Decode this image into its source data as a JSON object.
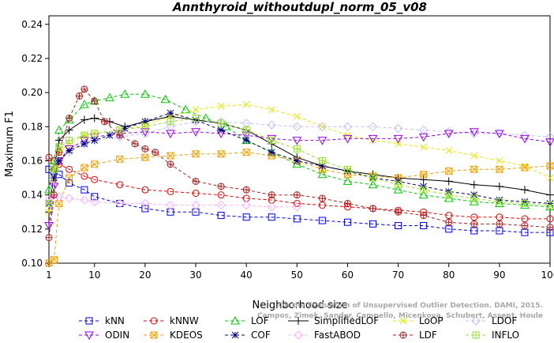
{
  "chart_data": {
    "type": "line",
    "title": "Annthyroid_withoutdupl_norm_05_v08",
    "xlabel": "Neighborhood size",
    "ylabel": "Maximum F1",
    "xlim": [
      1,
      100
    ],
    "ylim": [
      0.1,
      0.245
    ],
    "xticks": [
      1,
      10,
      20,
      30,
      40,
      50,
      60,
      70,
      80,
      90,
      100
    ],
    "yticks": [
      0.1,
      0.12,
      0.14,
      0.16,
      0.18,
      0.2,
      0.22,
      0.24
    ],
    "ytick_labels": [
      "0.10",
      "0.12",
      "0.14",
      "0.16",
      "0.18",
      "0.20",
      "0.22",
      "0.24"
    ],
    "grid": false,
    "legend_position": "bottom",
    "watermark": [
      "Campos, Zimek, Sander, Campello, Micenkova, Schubert, Assent, Houle",
      "On the Evaluation of Unsupervised Outlier Detection. DAMI, 2015."
    ],
    "series": [
      {
        "name": "kNN",
        "color": "#0000ee",
        "marker": "square",
        "dash": "dash",
        "x": [
          1,
          2,
          3,
          5,
          8,
          10,
          15,
          20,
          25,
          30,
          35,
          40,
          45,
          50,
          55,
          60,
          65,
          70,
          75,
          80,
          85,
          90,
          95,
          100
        ],
        "y": [
          0.155,
          0.154,
          0.152,
          0.147,
          0.143,
          0.139,
          0.135,
          0.132,
          0.13,
          0.13,
          0.128,
          0.127,
          0.127,
          0.126,
          0.125,
          0.124,
          0.123,
          0.122,
          0.122,
          0.12,
          0.119,
          0.119,
          0.118,
          0.118
        ]
      },
      {
        "name": "kNNW",
        "color": "#ee0000",
        "marker": "circle",
        "dash": "dash",
        "x": [
          1,
          2,
          3,
          5,
          8,
          10,
          15,
          20,
          25,
          30,
          35,
          40,
          45,
          50,
          55,
          60,
          65,
          70,
          75,
          80,
          85,
          90,
          95,
          100
        ],
        "y": [
          0.162,
          0.16,
          0.158,
          0.155,
          0.151,
          0.149,
          0.146,
          0.143,
          0.142,
          0.141,
          0.14,
          0.138,
          0.137,
          0.135,
          0.134,
          0.133,
          0.132,
          0.131,
          0.13,
          0.128,
          0.127,
          0.127,
          0.126,
          0.126
        ]
      },
      {
        "name": "LOF",
        "color": "#00cc00",
        "marker": "triangle",
        "dash": "dash",
        "x": [
          1,
          2,
          3,
          5,
          8,
          10,
          13,
          16,
          20,
          24,
          28,
          32,
          36,
          40,
          45,
          50,
          55,
          60,
          65,
          70,
          75,
          80,
          85,
          90,
          95,
          100
        ],
        "y": [
          0.143,
          0.16,
          0.178,
          0.184,
          0.193,
          0.195,
          0.197,
          0.199,
          0.199,
          0.196,
          0.19,
          0.185,
          0.18,
          0.172,
          0.165,
          0.158,
          0.152,
          0.148,
          0.146,
          0.143,
          0.14,
          0.138,
          0.136,
          0.135,
          0.134,
          0.133
        ]
      },
      {
        "name": "SimplifiedLOF",
        "color": "#000000",
        "marker": "plus",
        "dash": "solid",
        "x": [
          1,
          2,
          3,
          5,
          8,
          10,
          13,
          16,
          20,
          25,
          30,
          35,
          40,
          45,
          50,
          55,
          60,
          65,
          70,
          75,
          80,
          85,
          90,
          95,
          100
        ],
        "y": [
          0.13,
          0.155,
          0.172,
          0.178,
          0.184,
          0.185,
          0.183,
          0.18,
          0.183,
          0.186,
          0.184,
          0.182,
          0.178,
          0.17,
          0.162,
          0.157,
          0.154,
          0.152,
          0.15,
          0.149,
          0.148,
          0.146,
          0.145,
          0.143,
          0.14
        ]
      },
      {
        "name": "LoOP",
        "color": "#e8e800",
        "marker": "cross",
        "dash": "dash",
        "x": [
          1,
          2,
          3,
          5,
          8,
          10,
          15,
          20,
          25,
          30,
          35,
          40,
          45,
          50,
          55,
          60,
          65,
          70,
          75,
          80,
          85,
          90,
          95,
          100
        ],
        "y": [
          0.13,
          0.155,
          0.165,
          0.17,
          0.175,
          0.176,
          0.178,
          0.181,
          0.186,
          0.19,
          0.192,
          0.193,
          0.19,
          0.186,
          0.18,
          0.175,
          0.172,
          0.17,
          0.168,
          0.166,
          0.163,
          0.16,
          0.157,
          0.15
        ]
      },
      {
        "name": "LDOF",
        "color": "#c0c0ff",
        "marker": "diamond",
        "dash": "dash",
        "x": [
          1,
          2,
          3,
          5,
          8,
          10,
          15,
          20,
          25,
          30,
          35,
          40,
          45,
          50,
          55,
          60,
          65,
          70,
          75,
          80,
          85,
          90,
          95,
          100
        ],
        "y": [
          0.135,
          0.15,
          0.16,
          0.165,
          0.17,
          0.172,
          0.174,
          0.176,
          0.18,
          0.183,
          0.183,
          0.182,
          0.181,
          0.18,
          0.18,
          0.18,
          0.18,
          0.179,
          0.178,
          0.177,
          0.176,
          0.176,
          0.175,
          0.174
        ]
      },
      {
        "name": "ODIN",
        "color": "#9900ee",
        "marker": "triangle-down",
        "dash": "dash",
        "x": [
          1,
          2,
          3,
          5,
          8,
          10,
          15,
          20,
          25,
          30,
          35,
          40,
          45,
          50,
          55,
          60,
          65,
          70,
          75,
          80,
          85,
          90,
          95,
          100
        ],
        "y": [
          0.122,
          0.145,
          0.16,
          0.167,
          0.172,
          0.174,
          0.176,
          0.177,
          0.176,
          0.177,
          0.176,
          0.175,
          0.173,
          0.172,
          0.172,
          0.173,
          0.173,
          0.173,
          0.174,
          0.176,
          0.177,
          0.176,
          0.173,
          0.171
        ]
      },
      {
        "name": "KDEOS",
        "color": "#f0a000",
        "marker": "square-x",
        "dash": "dash",
        "x": [
          1,
          2,
          3,
          5,
          8,
          10,
          15,
          20,
          25,
          30,
          35,
          40,
          45,
          50,
          55,
          60,
          65,
          70,
          75,
          80,
          85,
          90,
          95,
          100
        ],
        "y": [
          0.1,
          0.102,
          0.135,
          0.15,
          0.156,
          0.158,
          0.161,
          0.162,
          0.163,
          0.164,
          0.164,
          0.165,
          0.163,
          0.16,
          0.155,
          0.152,
          0.151,
          0.15,
          0.152,
          0.154,
          0.155,
          0.155,
          0.156,
          0.157
        ]
      },
      {
        "name": "COF",
        "color": "#000080",
        "marker": "star",
        "dash": "dash",
        "x": [
          1,
          2,
          3,
          5,
          8,
          10,
          13,
          16,
          20,
          25,
          30,
          35,
          40,
          45,
          50,
          55,
          60,
          65,
          70,
          75,
          80,
          85,
          90,
          95,
          100
        ],
        "y": [
          0.135,
          0.15,
          0.16,
          0.166,
          0.17,
          0.172,
          0.175,
          0.179,
          0.183,
          0.188,
          0.184,
          0.178,
          0.172,
          0.165,
          0.16,
          0.157,
          0.154,
          0.15,
          0.148,
          0.145,
          0.142,
          0.14,
          0.137,
          0.136,
          0.135
        ]
      },
      {
        "name": "FastABOD",
        "color": "#ffb0ff",
        "marker": "diamond",
        "dash": "dash",
        "x": [
          1,
          2,
          3,
          5,
          8,
          10,
          15,
          20,
          25,
          30,
          35,
          40,
          45,
          50
        ],
        "y": [
          0.137,
          0.138,
          0.139,
          0.138,
          0.137,
          0.136,
          0.135,
          0.135,
          0.134,
          0.134,
          0.134,
          0.134,
          0.133,
          0.133
        ]
      },
      {
        "name": "LDF",
        "color": "#aa2222",
        "marker": "circle-plus",
        "dash": "dash",
        "x": [
          1,
          2,
          3,
          5,
          7,
          8,
          10,
          12,
          15,
          18,
          20,
          22,
          25,
          30,
          35,
          40,
          45,
          50,
          55,
          60,
          65,
          70,
          75,
          80,
          85,
          90,
          95,
          100
        ],
        "y": [
          0.115,
          0.14,
          0.165,
          0.185,
          0.198,
          0.202,
          0.195,
          0.183,
          0.175,
          0.17,
          0.167,
          0.165,
          0.158,
          0.148,
          0.145,
          0.143,
          0.14,
          0.14,
          0.138,
          0.135,
          0.132,
          0.13,
          0.128,
          0.124,
          0.123,
          0.123,
          0.122,
          0.121
        ]
      },
      {
        "name": "INFLO",
        "color": "#99dd33",
        "marker": "square-star",
        "dash": "dash",
        "x": [
          1,
          2,
          3,
          5,
          8,
          10,
          15,
          20,
          25,
          30,
          35,
          40,
          45,
          50,
          55,
          60,
          65,
          70,
          75,
          80,
          85,
          90,
          95,
          100
        ],
        "y": [
          0.135,
          0.155,
          0.168,
          0.172,
          0.175,
          0.176,
          0.178,
          0.18,
          0.183,
          0.185,
          0.182,
          0.178,
          0.172,
          0.167,
          0.16,
          0.155,
          0.15,
          0.146,
          0.143,
          0.14,
          0.138,
          0.136,
          0.135,
          0.134
        ]
      }
    ]
  }
}
